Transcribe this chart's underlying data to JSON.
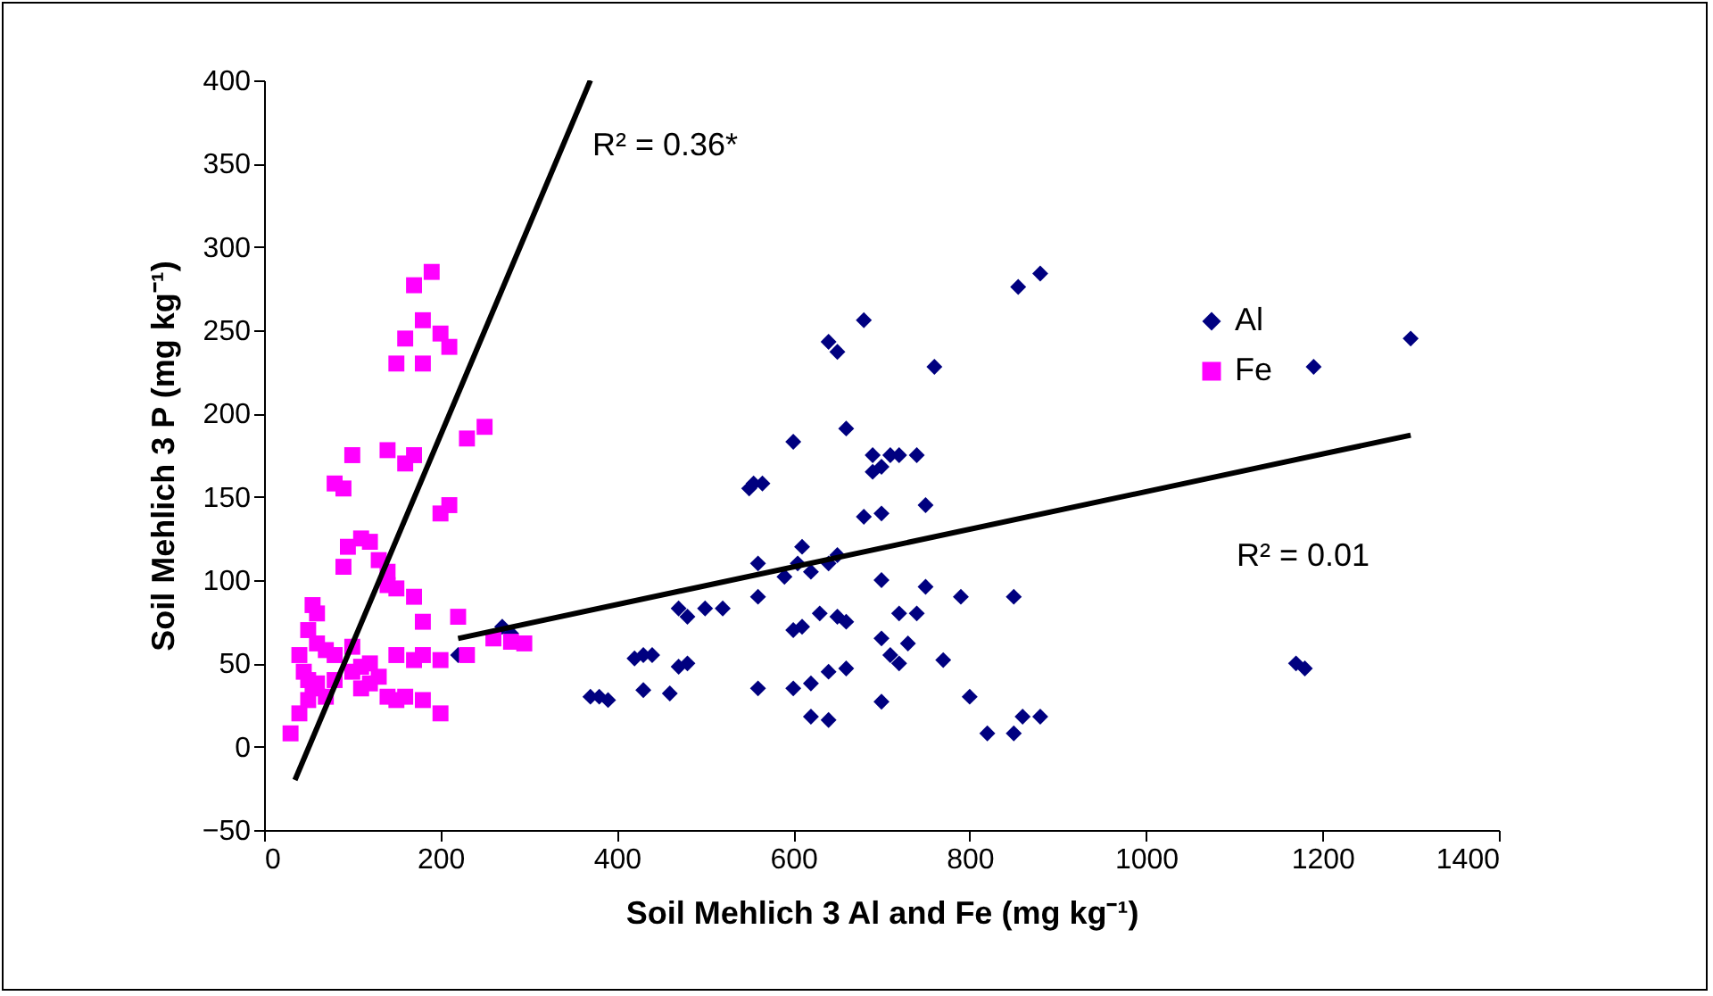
{
  "chart_data": {
    "type": "scatter",
    "xlabel": "Soil Mehlich 3 Al and Fe (mg kg⁻¹)",
    "ylabel": "Soil Mehlich 3 P (mg kg⁻¹)",
    "xlim": [
      0,
      1400
    ],
    "xticks": [
      0,
      200,
      400,
      600,
      800,
      1000,
      1200,
      1400
    ],
    "ylim": [
      -50,
      400
    ],
    "yticks": [
      -50,
      0,
      50,
      100,
      150,
      200,
      250,
      300,
      350,
      400
    ],
    "grid": false,
    "legend": "top right",
    "series": [
      {
        "name": "Al",
        "color": "#000080",
        "marker": "diamond",
        "x": [
          1300,
          1190,
          1170,
          1180,
          880,
          855,
          760,
          680,
          650,
          640,
          660,
          600,
          550,
          555,
          565,
          690,
          710,
          700,
          690,
          740,
          720,
          680,
          700,
          750,
          750,
          700,
          650,
          640,
          620,
          610,
          605,
          590,
          560,
          560,
          520,
          500,
          480,
          470,
          440,
          430,
          420,
          600,
          610,
          630,
          650,
          660,
          720,
          740,
          700,
          710,
          790,
          850,
          470,
          480,
          460,
          430,
          380,
          370,
          390,
          560,
          600,
          620,
          640,
          660,
          700,
          720,
          730,
          770,
          800,
          620,
          640,
          820,
          850,
          860,
          880,
          220,
          270,
          280
        ],
        "values": [
          245,
          228,
          50,
          47,
          284,
          276,
          228,
          256,
          237,
          243,
          191,
          183,
          155,
          158,
          158,
          175,
          175,
          168,
          165,
          175,
          175,
          138,
          140,
          145,
          96,
          100,
          115,
          110,
          105,
          120,
          110,
          102,
          110,
          90,
          83,
          83,
          78,
          83,
          55,
          55,
          53,
          70,
          72,
          80,
          78,
          75,
          80,
          80,
          65,
          55,
          90,
          90,
          48,
          50,
          32,
          34,
          30,
          30,
          28,
          35,
          35,
          38,
          45,
          47,
          27,
          50,
          62,
          52,
          30,
          18,
          16,
          8,
          8,
          18,
          18,
          55,
          72,
          68
        ]
      },
      {
        "name": "Fe",
        "color": "#ff00ff",
        "marker": "square",
        "x": [
          190,
          170,
          180,
          160,
          200,
          210,
          150,
          180,
          250,
          230,
          210,
          200,
          100,
          140,
          160,
          170,
          80,
          90,
          110,
          120,
          95,
          90,
          130,
          140,
          140,
          150,
          170,
          180,
          220,
          55,
          60,
          50,
          60,
          70,
          80,
          100,
          120,
          150,
          170,
          200,
          40,
          45,
          50,
          55,
          70,
          80,
          100,
          110,
          130,
          140,
          150,
          160,
          180,
          200,
          30,
          40,
          50,
          60,
          110,
          120,
          260,
          280,
          295,
          230,
          180
        ],
        "values": [
          285,
          277,
          256,
          245,
          248,
          240,
          230,
          230,
          192,
          185,
          145,
          140,
          175,
          178,
          170,
          175,
          158,
          155,
          125,
          123,
          120,
          108,
          112,
          105,
          97,
          95,
          90,
          75,
          78,
          85,
          80,
          70,
          62,
          58,
          55,
          60,
          50,
          55,
          52,
          52,
          55,
          45,
          40,
          35,
          30,
          40,
          45,
          48,
          42,
          30,
          28,
          30,
          28,
          20,
          8,
          20,
          28,
          38,
          35,
          38,
          65,
          63,
          62,
          55,
          55
        ]
      },
      {
        "type": "line",
        "color": "#000000",
        "x": [
          35,
          370
        ],
        "values": [
          -20,
          400
        ]
      },
      {
        "type": "line",
        "color": "#000000",
        "x": [
          220,
          1300
        ],
        "values": [
          65,
          187
        ]
      }
    ],
    "annotations": [
      "R² = 0.36*",
      "R² = 0.01"
    ]
  }
}
